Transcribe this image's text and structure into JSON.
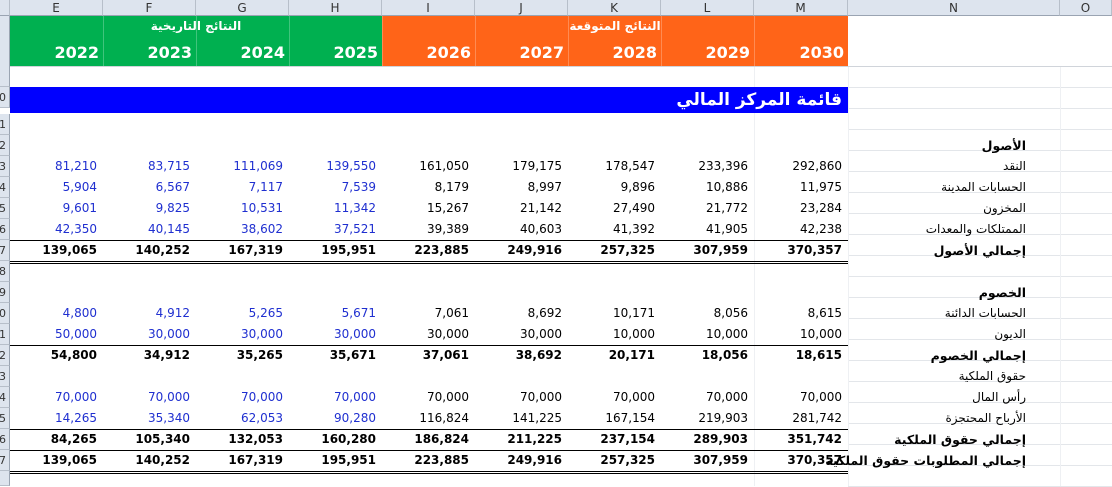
{
  "columns": [
    "E",
    "F",
    "G",
    "H",
    "I",
    "J",
    "K",
    "L",
    "M",
    "N",
    "O"
  ],
  "historical_title": "النتائج التاريخية",
  "forecast_title": "النتائج المتوقعة",
  "years": [
    "2022",
    "2023",
    "2024",
    "2025",
    "2026",
    "2027",
    "2028",
    "2029",
    "2030"
  ],
  "colors": {
    "historical": "#00b050",
    "forecast": "#ff6418",
    "title_bar": "#0000ff",
    "input_blue": "#1f2fd0"
  },
  "sheet_title": "قائمة المركز المالي",
  "row_numbers": [
    "0",
    "1",
    "2",
    "3",
    "4",
    "5",
    "6",
    "7",
    "8",
    "9",
    "0",
    "1",
    "2",
    "3",
    "4",
    "5",
    "6",
    "7"
  ],
  "rows": [
    {
      "label": "الأصول",
      "bold": true,
      "values": []
    },
    {
      "label": "النقد",
      "bold": false,
      "values": [
        "81,210",
        "83,715",
        "111,069",
        "139,550",
        "161,050",
        "179,175",
        "178,547",
        "233,396",
        "292,860"
      ]
    },
    {
      "label": "الحسابات المدينة",
      "bold": false,
      "values": [
        "5,904",
        "6,567",
        "7,117",
        "7,539",
        "8,179",
        "8,997",
        "9,896",
        "10,886",
        "11,975"
      ]
    },
    {
      "label": "المخزون",
      "bold": false,
      "values": [
        "9,601",
        "9,825",
        "10,531",
        "11,342",
        "15,267",
        "21,142",
        "27,490",
        "21,772",
        "23,284"
      ]
    },
    {
      "label": "الممتلكات والمعدات",
      "bold": false,
      "values": [
        "42,350",
        "40,145",
        "38,602",
        "37,521",
        "39,389",
        "40,603",
        "41,392",
        "41,905",
        "42,238"
      ]
    },
    {
      "label": "إجمالي الأصول",
      "bold": true,
      "values": [
        "139,065",
        "140,252",
        "167,319",
        "195,951",
        "223,885",
        "249,916",
        "257,325",
        "307,959",
        "370,357"
      ]
    },
    {
      "label": "الخصوم",
      "bold": true,
      "values": []
    },
    {
      "label": "الحسابات الدائنة",
      "bold": false,
      "values": [
        "4,800",
        "4,912",
        "5,265",
        "5,671",
        "7,061",
        "8,692",
        "10,171",
        "8,056",
        "8,615"
      ]
    },
    {
      "label": "الديون",
      "bold": false,
      "values": [
        "50,000",
        "30,000",
        "30,000",
        "30,000",
        "30,000",
        "30,000",
        "10,000",
        "10,000",
        "10,000"
      ]
    },
    {
      "label": "إجمالي الخصوم",
      "bold": true,
      "values": [
        "54,800",
        "34,912",
        "35,265",
        "35,671",
        "37,061",
        "38,692",
        "20,171",
        "18,056",
        "18,615"
      ]
    },
    {
      "label": "حقوق الملكية",
      "bold": false,
      "values": []
    },
    {
      "label": "رأس المال",
      "bold": false,
      "values": [
        "70,000",
        "70,000",
        "70,000",
        "70,000",
        "70,000",
        "70,000",
        "70,000",
        "70,000",
        "70,000"
      ]
    },
    {
      "label": "الأرباح المحتجزة",
      "bold": false,
      "values": [
        "14,265",
        "35,340",
        "62,053",
        "90,280",
        "116,824",
        "141,225",
        "167,154",
        "219,903",
        "281,742"
      ]
    },
    {
      "label": "إجمالي حقوق الملكية",
      "bold": true,
      "values": [
        "84,265",
        "105,340",
        "132,053",
        "160,280",
        "186,824",
        "211,225",
        "237,154",
        "289,903",
        "351,742"
      ]
    },
    {
      "label": "إجمالي المطلوبات حقوق الملكية",
      "bold": true,
      "values": [
        "139,065",
        "140,252",
        "167,319",
        "195,951",
        "223,885",
        "249,916",
        "257,325",
        "307,959",
        "370,357"
      ]
    }
  ]
}
